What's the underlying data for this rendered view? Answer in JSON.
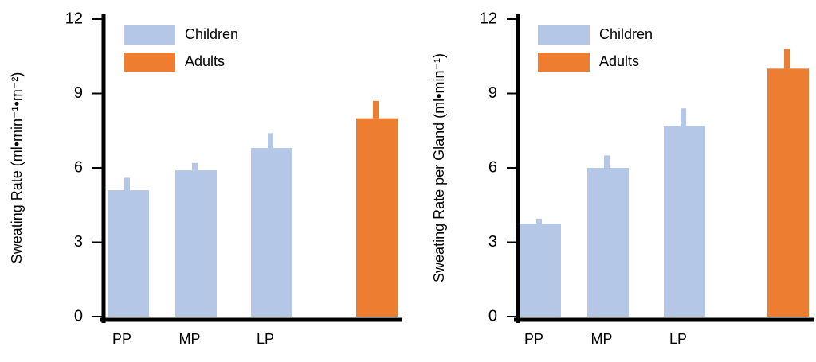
{
  "chart_data": [
    {
      "type": "bar",
      "ylabel": "Sweating Rate (ml•min⁻¹•m⁻²)",
      "categories": [
        "PP",
        "MP",
        "LP",
        null
      ],
      "series": [
        {
          "name": "Children",
          "color": "#b4c7e7",
          "values": [
            5.1,
            5.9,
            6.8,
            null
          ],
          "errors": [
            0.5,
            0.3,
            0.6,
            null
          ]
        },
        {
          "name": "Adults",
          "color": "#ed7d31",
          "values": [
            null,
            null,
            null,
            8.0
          ],
          "errors": [
            null,
            null,
            null,
            0.7
          ]
        }
      ],
      "ylim": [
        0,
        12
      ],
      "yticks": [
        0,
        3,
        6,
        9,
        12
      ]
    },
    {
      "type": "bar",
      "ylabel": "Sweating Rate per Gland (ml•min⁻¹)",
      "categories": [
        "PP",
        "MP",
        "LP",
        null
      ],
      "series": [
        {
          "name": "Children",
          "color": "#b4c7e7",
          "values": [
            3.75,
            6.0,
            7.7,
            null
          ],
          "errors": [
            0.2,
            0.5,
            0.7,
            null
          ]
        },
        {
          "name": "Adults",
          "color": "#ed7d31",
          "values": [
            null,
            null,
            null,
            10.0
          ],
          "errors": [
            null,
            null,
            null,
            0.8
          ]
        }
      ],
      "ylim": [
        0,
        12
      ],
      "yticks": [
        0,
        3,
        6,
        9,
        12
      ]
    }
  ]
}
